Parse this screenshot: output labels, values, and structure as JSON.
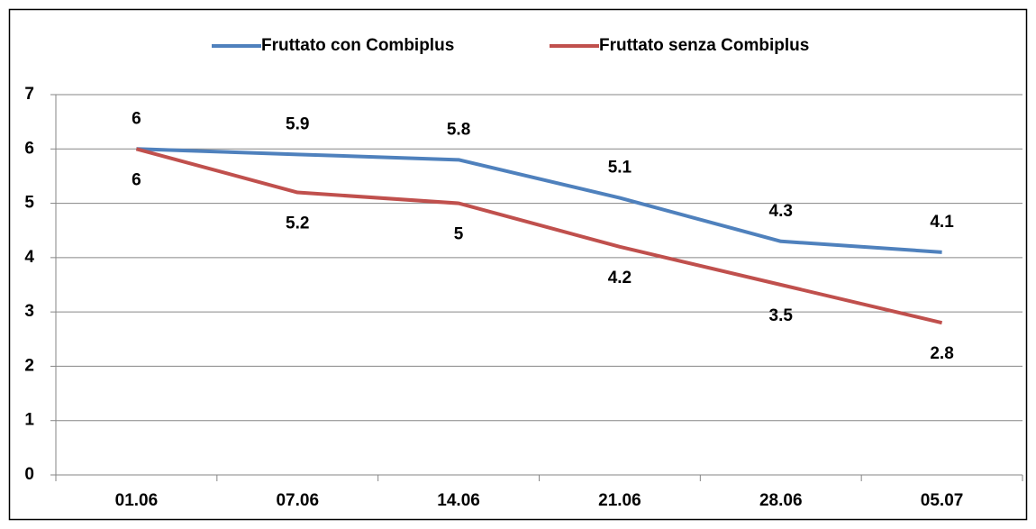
{
  "chart_data": {
    "type": "line",
    "categories": [
      "01.06",
      "07.06",
      "14.06",
      "21.06",
      "28.06",
      "05.07"
    ],
    "series": [
      {
        "name": "Fruttato con Combiplus",
        "color": "#4f81bd",
        "values": [
          6,
          5.9,
          5.8,
          5.1,
          4.3,
          4.1
        ]
      },
      {
        "name": "Fruttato senza Combiplus",
        "color": "#c0504d",
        "values": [
          6,
          5.2,
          5,
          4.2,
          3.5,
          2.8
        ]
      }
    ],
    "ylim": [
      0,
      7
    ],
    "yticks": [
      0,
      1,
      2,
      3,
      4,
      5,
      6,
      7
    ],
    "grid": true,
    "legend": "top"
  }
}
